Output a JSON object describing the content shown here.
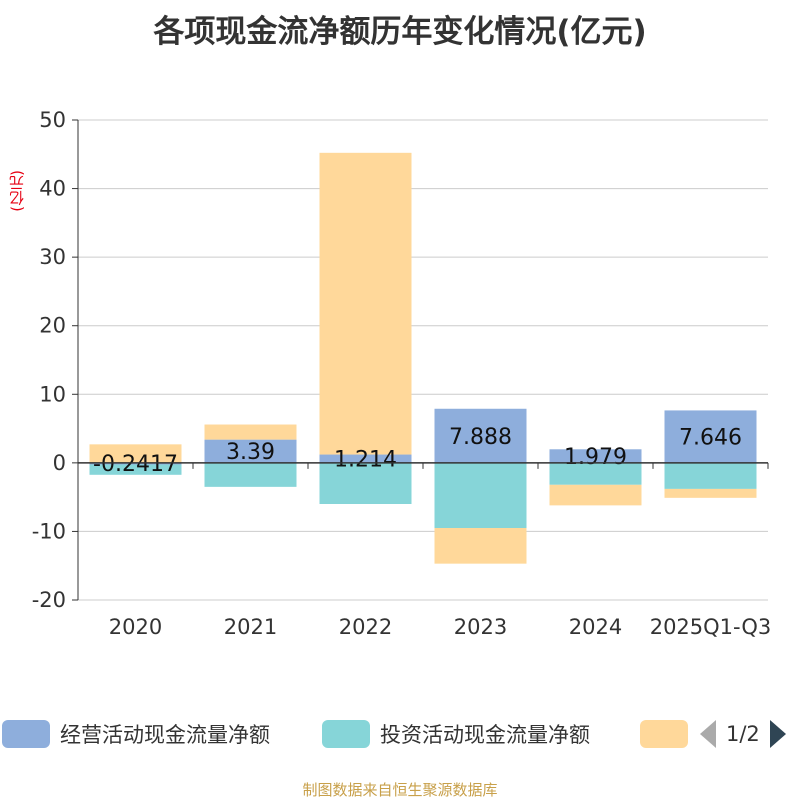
{
  "title": "各项现金流净额历年变化情况(亿元)",
  "unit_label": "(亿元)",
  "source": "制图数据来自恒生聚源数据库",
  "pager": {
    "text": "1/2"
  },
  "colors": {
    "operating": "#8eaedc",
    "investing": "#86d5d8",
    "financing": "#ffd89a",
    "unit": "#e60012",
    "source": "#c8a04a"
  },
  "chart_data": {
    "type": "bar",
    "stacked": true,
    "categories": [
      "2020",
      "2021",
      "2022",
      "2023",
      "2024",
      "2025Q1-Q3"
    ],
    "series": [
      {
        "name": "经营活动现金流量净额",
        "values": [
          -0.2417,
          3.39,
          1.214,
          7.888,
          1.979,
          7.646
        ]
      },
      {
        "name": "投资活动现金流量净额",
        "values": [
          -1.5,
          -3.5,
          -6.0,
          -9.5,
          -3.2,
          -3.8
        ]
      },
      {
        "name": "",
        "values": [
          2.7,
          2.2,
          44.0,
          -5.2,
          -3.0,
          -1.3
        ]
      }
    ],
    "data_labels": [
      "-0.2417",
      "3.39",
      "1.214",
      "7.888",
      "1.979",
      "7.646"
    ],
    "ylim": [
      -20,
      50
    ],
    "yticks": [
      50,
      40,
      30,
      20,
      10,
      0,
      -10,
      -20
    ],
    "ylabel": "(亿元)",
    "legend_position": "bottom"
  }
}
